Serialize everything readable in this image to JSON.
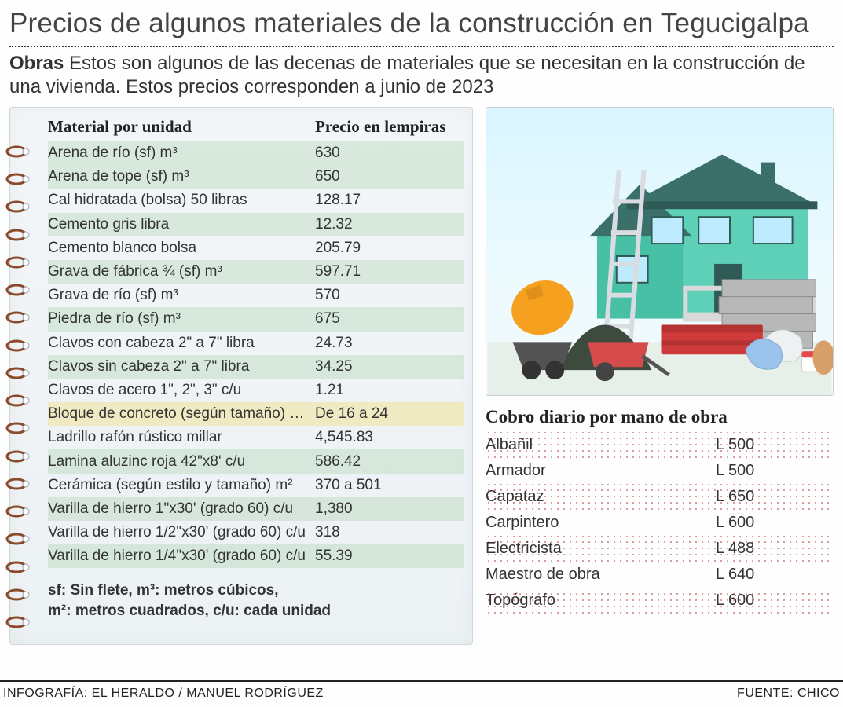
{
  "colors": {
    "text": "#333333",
    "title": "#444444",
    "rule": "#333333",
    "notebook_bg_top": "#f3f6f9",
    "notebook_bg_bot": "#ecf1f4",
    "notebook_border": "#cfd6da",
    "band_green": "rgba(170,208,170,0.35)",
    "band_yellow": "rgba(240,225,140,0.5)",
    "labor_dot": "rgba(180,60,60,.55)",
    "sky_top": "#d9f5ff",
    "sky_bot": "#f3f9f9",
    "house_wall": "#5fd0b8",
    "house_roof": "#3a6f6a",
    "mixer_orange": "#f5a01e",
    "mixer_dark": "#535353",
    "sand_pile": "#3d4a3e",
    "wood_red": "#cf3b3b",
    "bag_white": "#eef1f2",
    "bag_blue": "#9cc3ec",
    "brick_grey": "#b8b8b8",
    "bucket": "#e74a4a",
    "lumber_tan": "#d7a06a"
  },
  "typography": {
    "title_fontsize": 35,
    "subtitle_fontsize": 24,
    "table_header_fontsize": 21,
    "row_fontsize": 19,
    "labor_title_fontsize": 23,
    "labor_row_fontsize": 20,
    "footer_fontsize": 16
  },
  "title": "Precios de algunos materiales de la construcción en Tegucigalpa",
  "subtitle_lead": "Obras",
  "subtitle_rest": " Estos son algunos de las decenas de materiales que se necesitan en la construcción de una vivienda. Estos precios corresponden a junio de 2023",
  "materials_table": {
    "type": "table",
    "header_material": "Material por unidad",
    "header_price": "Precio en lempiras",
    "rows": [
      {
        "material": "Arena de río (sf) m³",
        "price": "630",
        "band": "green"
      },
      {
        "material": "Arena de tope (sf) m³",
        "price": "650",
        "band": "green"
      },
      {
        "material": "Cal hidratada (bolsa) 50 libras",
        "price": "128.17",
        "band": "none"
      },
      {
        "material": "Cemento gris libra",
        "price": "12.32",
        "band": "green"
      },
      {
        "material": "Cemento blanco bolsa",
        "price": "205.79",
        "band": "none"
      },
      {
        "material": "Grava de fábrica ¾ (sf) m³",
        "price": "597.71",
        "band": "green"
      },
      {
        "material": "Grava de río (sf) m³",
        "price": "570",
        "band": "none"
      },
      {
        "material": "Piedra de río (sf) m³",
        "price": "675",
        "band": "green"
      },
      {
        "material": "Clavos con cabeza 2\" a 7\" libra",
        "price": "24.73",
        "band": "none"
      },
      {
        "material": "Clavos sin cabeza 2\" a 7\" libra",
        "price": "34.25",
        "band": "green"
      },
      {
        "material": "Clavos de acero 1\", 2\", 3\" c/u",
        "price": "1.21",
        "band": "none"
      },
      {
        "material": "Bloque de concreto (según tamaño) c/u",
        "price": "De 16 a 24",
        "band": "yellow"
      },
      {
        "material": "Ladrillo rafón rústico millar",
        "price": "4,545.83",
        "band": "none"
      },
      {
        "material": "Lamina aluzinc roja 42\"x8' c/u",
        "price": "586.42",
        "band": "green"
      },
      {
        "material": "Cerámica (según estilo y tamaño) m²",
        "price": "370 a 501",
        "band": "none"
      },
      {
        "material": "Varilla de hierro 1\"x30' (grado 60) c/u",
        "price": "1,380",
        "band": "green"
      },
      {
        "material": "Varilla de hierro 1/2\"x30' (grado 60) c/u",
        "price": "318",
        "band": "none"
      },
      {
        "material": "Varilla de hierro 1/4\"x30' (grado 60) c/u",
        "price": "55.39",
        "band": "green"
      }
    ],
    "legend_line1": "sf: Sin flete, m³: metros cúbicos,",
    "legend_line2": "m²: metros cuadrados, c/u: cada unidad"
  },
  "labor_table": {
    "type": "table",
    "title": "Cobro diario por mano de obra",
    "currency_prefix": "L",
    "rows": [
      {
        "role": "Albañil",
        "amount": "500",
        "dotfill": true
      },
      {
        "role": "Armador",
        "amount": "500",
        "dotfill": false
      },
      {
        "role": "Capataz",
        "amount": "650",
        "dotfill": true
      },
      {
        "role": "Carpintero",
        "amount": "600",
        "dotfill": false
      },
      {
        "role": "Electricista",
        "amount": "488",
        "dotfill": true
      },
      {
        "role": "Maestro de obra",
        "amount": "640",
        "dotfill": false
      },
      {
        "role": "Topógrafo",
        "amount": "600",
        "dotfill": true
      }
    ]
  },
  "footer_left": "INFOGRAFÍA: EL HERALDO / MANUEL RODRÍGUEZ",
  "footer_right": "FUENTE: CHICO",
  "illustration": {
    "type": "infographic",
    "description": "house-with-construction-materials",
    "elements": [
      "house",
      "ladder",
      "cement-mixer",
      "sand-pile",
      "wheelbarrow",
      "lumber-stack",
      "cement-bags",
      "concrete-blocks",
      "paint-bucket",
      "roll"
    ]
  }
}
